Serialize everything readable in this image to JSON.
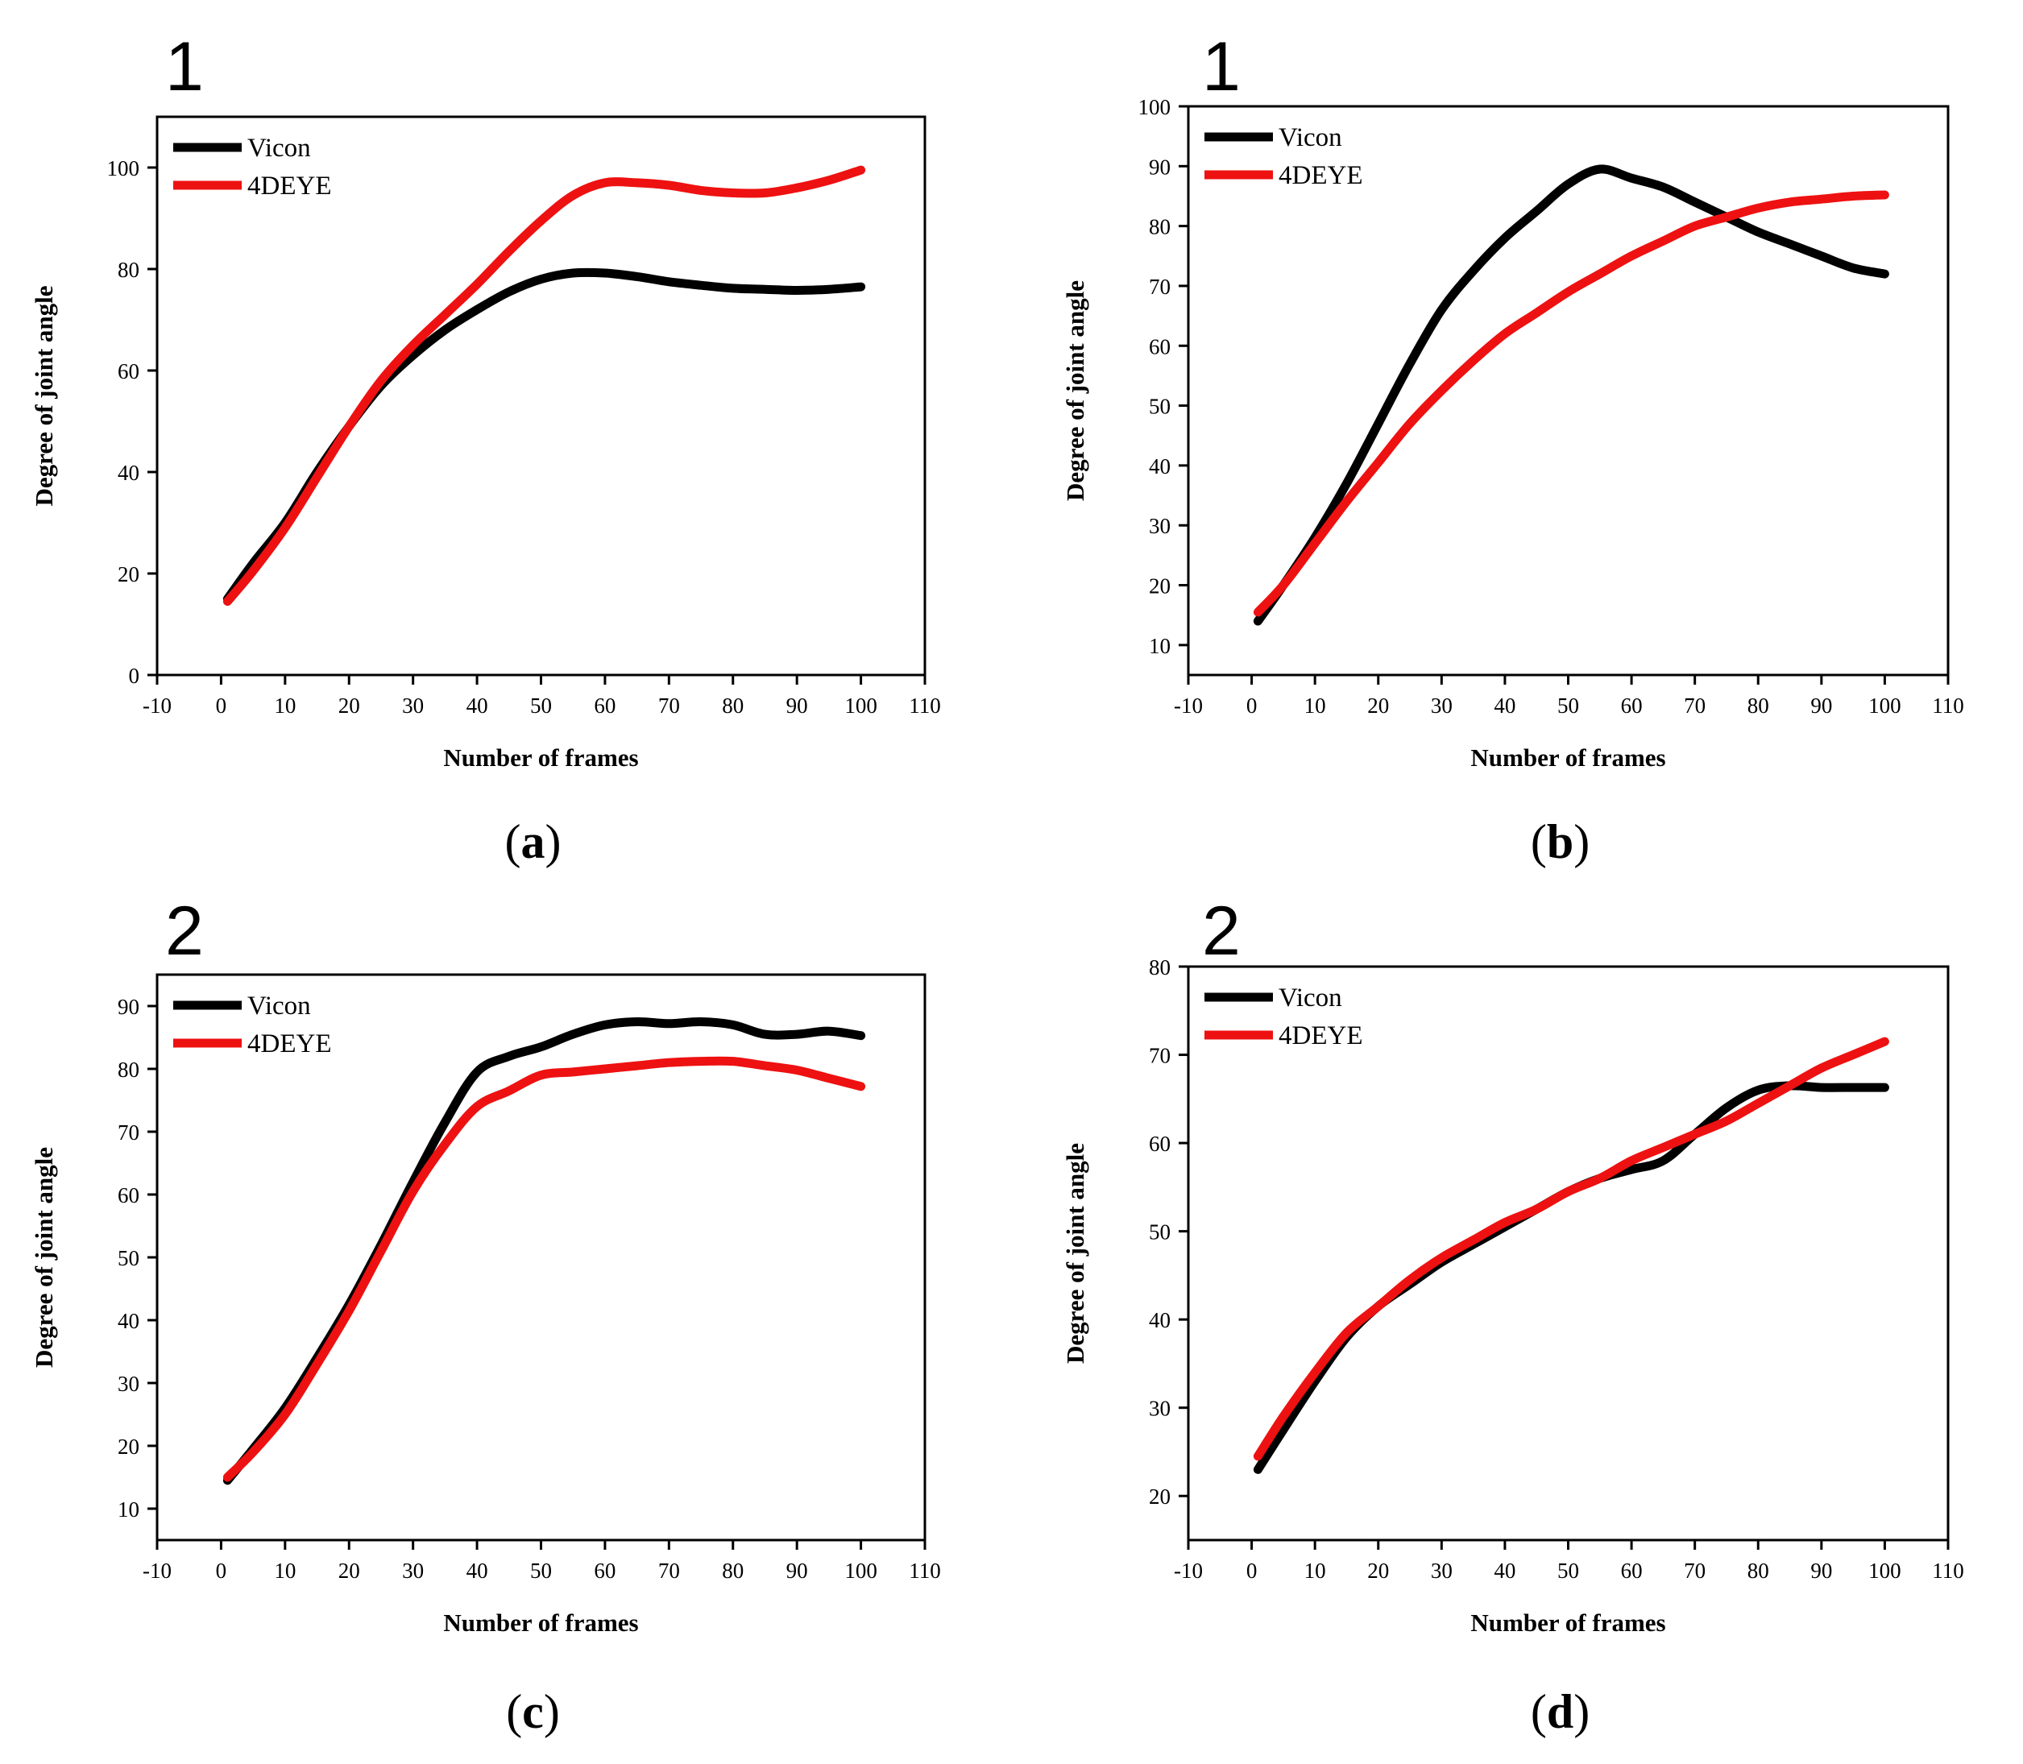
{
  "colors": {
    "vicon": "#000000",
    "fourdeye": "#ee1111"
  },
  "chart_data": [
    {
      "type": "line",
      "panel_number": "1",
      "caption_letter": "a",
      "xlabel": "Number of frames",
      "ylabel": "Degree of joint angle",
      "xlim": [
        -10,
        110
      ],
      "ylim": [
        0,
        110
      ],
      "xticks": [
        -10,
        0,
        10,
        20,
        30,
        40,
        50,
        60,
        70,
        80,
        90,
        100,
        110
      ],
      "yticks": [
        0,
        20,
        40,
        60,
        80,
        100
      ],
      "legend_position": "top-left",
      "series": [
        {
          "name": "Vicon",
          "color": "#000000",
          "x": [
            1,
            5,
            10,
            15,
            20,
            25,
            30,
            35,
            40,
            45,
            50,
            55,
            60,
            65,
            70,
            75,
            80,
            85,
            90,
            95,
            100
          ],
          "y": [
            15,
            22,
            30,
            40,
            49,
            57,
            63,
            68,
            72,
            75.5,
            78,
            79.2,
            79.2,
            78.5,
            77.5,
            76.8,
            76.2,
            76,
            75.8,
            76,
            76.5
          ]
        },
        {
          "name": "4DEYE",
          "color": "#ee1111",
          "x": [
            1,
            5,
            10,
            15,
            20,
            25,
            30,
            35,
            40,
            45,
            50,
            55,
            60,
            65,
            70,
            75,
            80,
            85,
            90,
            95,
            100
          ],
          "y": [
            14.5,
            20.5,
            29,
            39,
            49,
            58,
            65,
            71,
            77,
            83.5,
            89.5,
            94.5,
            97,
            97,
            96.5,
            95.5,
            95,
            95,
            96,
            97.5,
            99.5
          ]
        }
      ]
    },
    {
      "type": "line",
      "panel_number": "1",
      "caption_letter": "b",
      "xlabel": "Number of frames",
      "ylabel": "Degree of joint angle",
      "xlim": [
        -10,
        110
      ],
      "ylim": [
        5,
        100
      ],
      "xticks": [
        -10,
        0,
        10,
        20,
        30,
        40,
        50,
        60,
        70,
        80,
        90,
        100,
        110
      ],
      "yticks": [
        10,
        20,
        30,
        40,
        50,
        60,
        70,
        80,
        90,
        100
      ],
      "legend_position": "top-left",
      "series": [
        {
          "name": "Vicon",
          "color": "#000000",
          "x": [
            1,
            5,
            10,
            15,
            20,
            25,
            30,
            35,
            40,
            45,
            50,
            55,
            60,
            65,
            70,
            75,
            80,
            85,
            90,
            95,
            100
          ],
          "y": [
            14,
            20,
            28,
            37,
            47,
            57,
            66,
            72.5,
            78,
            82.5,
            87,
            89.5,
            88,
            86.5,
            84,
            81.5,
            79,
            77,
            75,
            73,
            72
          ]
        },
        {
          "name": "4DEYE",
          "color": "#ee1111",
          "x": [
            1,
            5,
            10,
            15,
            20,
            25,
            30,
            35,
            40,
            45,
            50,
            55,
            60,
            65,
            70,
            75,
            80,
            85,
            90,
            95,
            100
          ],
          "y": [
            15.5,
            20,
            27,
            34,
            40.5,
            47,
            52.5,
            57.5,
            62,
            65.5,
            69,
            72,
            75,
            77.5,
            80,
            81.5,
            83,
            84,
            84.5,
            85,
            85.2
          ]
        }
      ]
    },
    {
      "type": "line",
      "panel_number": "2",
      "caption_letter": "c",
      "xlabel": "Number of frames",
      "ylabel": "Degree of joint angle",
      "xlim": [
        -10,
        110
      ],
      "ylim": [
        5,
        95
      ],
      "xticks": [
        -10,
        0,
        10,
        20,
        30,
        40,
        50,
        60,
        70,
        80,
        90,
        100,
        110
      ],
      "yticks": [
        10,
        20,
        30,
        40,
        50,
        60,
        70,
        80,
        90
      ],
      "legend_position": "top-left",
      "series": [
        {
          "name": "Vicon",
          "color": "#000000",
          "x": [
            1,
            5,
            10,
            15,
            20,
            25,
            30,
            35,
            40,
            45,
            50,
            55,
            60,
            65,
            70,
            75,
            80,
            85,
            90,
            95,
            100
          ],
          "y": [
            14.5,
            19.5,
            26,
            34,
            42.5,
            52,
            62,
            71.5,
            79.5,
            82,
            83.5,
            85.5,
            87,
            87.5,
            87.2,
            87.5,
            87,
            85.5,
            85.5,
            86,
            85.3
          ]
        },
        {
          "name": "4DEYE",
          "color": "#ee1111",
          "x": [
            1,
            5,
            10,
            15,
            20,
            25,
            30,
            35,
            40,
            45,
            50,
            55,
            60,
            65,
            70,
            75,
            80,
            85,
            90,
            95,
            100
          ],
          "y": [
            15,
            19,
            25,
            33,
            41.5,
            51,
            60.5,
            68,
            74,
            76.5,
            79,
            79.5,
            80,
            80.5,
            81,
            81.2,
            81.2,
            80.5,
            79.8,
            78.5,
            77.2
          ]
        }
      ]
    },
    {
      "type": "line",
      "panel_number": "2",
      "caption_letter": "d",
      "xlabel": "Number of frames",
      "ylabel": "Degree of joint angle",
      "xlim": [
        -10,
        110
      ],
      "ylim": [
        15,
        80
      ],
      "xticks": [
        -10,
        0,
        10,
        20,
        30,
        40,
        50,
        60,
        70,
        80,
        90,
        100,
        110
      ],
      "yticks": [
        20,
        30,
        40,
        50,
        60,
        70,
        80
      ],
      "legend_position": "top-left",
      "series": [
        {
          "name": "Vicon",
          "color": "#000000",
          "x": [
            1,
            5,
            10,
            15,
            20,
            25,
            30,
            35,
            40,
            45,
            50,
            55,
            60,
            65,
            70,
            75,
            80,
            85,
            90,
            95,
            100
          ],
          "y": [
            23,
            27.5,
            33,
            38,
            41.5,
            44,
            46.5,
            48.5,
            50.5,
            52.5,
            54.5,
            56,
            57,
            58,
            61,
            64,
            66,
            66.5,
            66.3,
            66.3,
            66.3
          ]
        },
        {
          "name": "4DEYE",
          "color": "#ee1111",
          "x": [
            1,
            5,
            10,
            15,
            20,
            25,
            30,
            35,
            40,
            45,
            50,
            55,
            60,
            65,
            70,
            75,
            80,
            85,
            90,
            95,
            100
          ],
          "y": [
            24.5,
            29,
            34,
            38.5,
            41.5,
            44.5,
            47,
            49,
            51,
            52.5,
            54.5,
            56,
            58,
            59.5,
            61,
            62.5,
            64.5,
            66.5,
            68.5,
            70,
            71.5
          ]
        }
      ]
    }
  ]
}
